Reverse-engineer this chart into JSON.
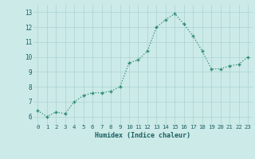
{
  "x": [
    0,
    1,
    2,
    3,
    4,
    5,
    6,
    7,
    8,
    9,
    10,
    11,
    12,
    13,
    14,
    15,
    16,
    17,
    18,
    19,
    20,
    21,
    22,
    23
  ],
  "y": [
    6.4,
    6.0,
    6.3,
    6.2,
    7.0,
    7.4,
    7.6,
    7.6,
    7.7,
    8.0,
    9.6,
    9.8,
    10.4,
    12.0,
    12.5,
    12.9,
    12.2,
    11.4,
    10.4,
    9.2,
    9.2,
    9.4,
    9.5,
    10.0
  ],
  "xlabel": "Humidex (Indice chaleur)",
  "xlim": [
    -0.5,
    23.5
  ],
  "ylim": [
    5.5,
    13.5
  ],
  "yticks": [
    6,
    7,
    8,
    9,
    10,
    11,
    12,
    13
  ],
  "xticks": [
    0,
    1,
    2,
    3,
    4,
    5,
    6,
    7,
    8,
    9,
    10,
    11,
    12,
    13,
    14,
    15,
    16,
    17,
    18,
    19,
    20,
    21,
    22,
    23
  ],
  "line_color": "#2e8b72",
  "bg_color": "#cceae8",
  "grid_color": "#aad4d0",
  "tick_label_color": "#1a6060",
  "xlabel_color": "#1a6060"
}
